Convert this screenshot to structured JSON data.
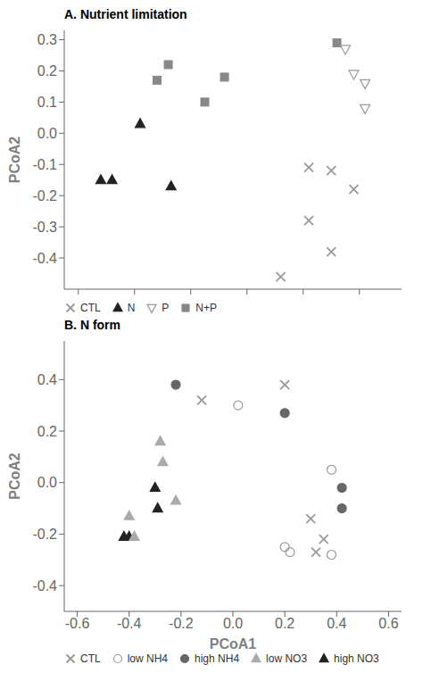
{
  "chart_data": [
    {
      "type": "scatter",
      "title": "A. Nutrient limitation",
      "ylabel": "PCoA2",
      "series": [
        {
          "name": "CTL",
          "color": "#999999",
          "marker": "x",
          "x": [
            0.22,
            0.3,
            0.38,
            0.22,
            0.3,
            0.12
          ],
          "values": [
            -0.11,
            -0.12,
            -0.18,
            -0.28,
            -0.38,
            -0.46
          ]
        },
        {
          "name": "N",
          "color": "#222222",
          "marker": "triangle-up",
          "x": [
            -0.52,
            -0.48,
            -0.38,
            -0.27
          ],
          "values": [
            -0.15,
            -0.15,
            0.03,
            -0.17
          ]
        },
        {
          "name": "P",
          "color": "#999999",
          "marker": "triangle-down-open",
          "x": [
            0.35,
            0.38,
            0.42,
            0.42
          ],
          "values": [
            0.27,
            0.19,
            0.16,
            0.08
          ]
        },
        {
          "name": "N+P",
          "color": "#888888",
          "marker": "square",
          "x": [
            -0.32,
            -0.28,
            -0.15,
            -0.08,
            0.32
          ],
          "values": [
            0.17,
            0.22,
            0.1,
            0.18,
            0.29
          ]
        }
      ],
      "xlim": [
        -0.65,
        0.55
      ],
      "ylim": [
        -0.5,
        0.33
      ],
      "xticks": [
        -0.6,
        -0.4,
        -0.2,
        0,
        0.2,
        0.4
      ],
      "yticks": [
        0.3,
        0.2,
        0.1,
        {
          "value": 0,
          "label": "0.0"
        },
        -0.1,
        -0.2,
        -0.3,
        -0.4
      ],
      "tick_labels": "y",
      "legend": "lower left",
      "grid": false
    },
    {
      "type": "scatter",
      "title": "B. N form",
      "xlabel": "PCoA1",
      "ylabel": "PCoA2",
      "series": [
        {
          "name": "CTL",
          "color": "#999999",
          "marker": "x",
          "x": [
            -0.12,
            0.2,
            0.3,
            0.35,
            0.32
          ],
          "values": [
            0.32,
            0.38,
            -0.14,
            -0.22,
            -0.27
          ]
        },
        {
          "name": "low NH4",
          "color": "#999999",
          "marker": "circle-open",
          "x": [
            0.02,
            0.2,
            0.38,
            0.22,
            0.38
          ],
          "values": [
            0.3,
            -0.25,
            0.05,
            -0.27,
            -0.28
          ]
        },
        {
          "name": "high NH4",
          "color": "#666666",
          "marker": "circle",
          "x": [
            -0.22,
            0.2,
            0.42,
            0.42
          ],
          "values": [
            0.38,
            0.27,
            -0.02,
            -0.1
          ]
        },
        {
          "name": "low NO3",
          "color": "#aaaaaa",
          "marker": "triangle-up",
          "x": [
            -0.4,
            -0.38,
            -0.28,
            -0.27,
            -0.22
          ],
          "values": [
            -0.13,
            -0.21,
            0.16,
            0.08,
            -0.07
          ]
        },
        {
          "name": "high NO3",
          "color": "#222222",
          "marker": "triangle-up",
          "x": [
            -0.42,
            -0.4,
            -0.3,
            -0.29
          ],
          "values": [
            -0.21,
            -0.21,
            -0.02,
            -0.1
          ]
        }
      ],
      "xlim": [
        -0.65,
        0.65
      ],
      "ylim": [
        -0.5,
        0.55
      ],
      "xticks": [
        -0.6,
        -0.4,
        -0.2,
        {
          "value": 0,
          "label": "0.0"
        },
        0.2,
        0.4,
        0.6
      ],
      "yticks": [
        0.4,
        0.2,
        {
          "value": 0,
          "label": "0.0"
        },
        -0.2,
        -0.4
      ],
      "legend": "lower left",
      "grid": false
    }
  ]
}
